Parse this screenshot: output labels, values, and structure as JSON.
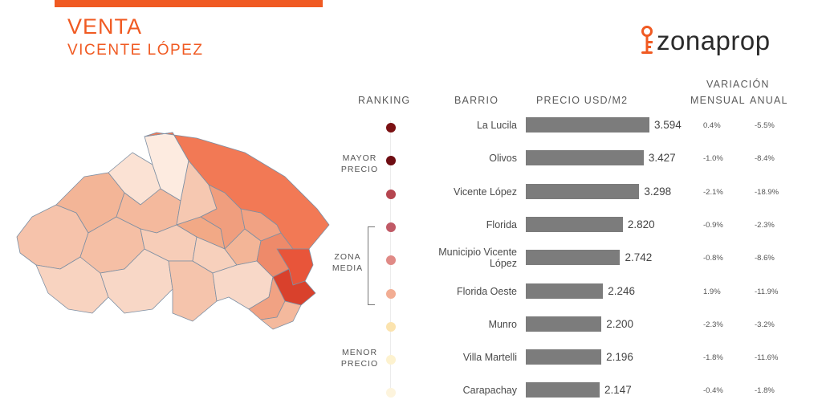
{
  "header": {
    "title": "VENTA",
    "subtitle": "VICENTE LÓPEZ",
    "logo_text": "zonaprop",
    "accent_color": "#f05a22"
  },
  "legend": {
    "mayor": [
      "MAYOR",
      "PRECIO"
    ],
    "zona": [
      "ZONA",
      "MEDIA"
    ],
    "menor": [
      "MENOR",
      "PRECIO"
    ]
  },
  "chart_data": {
    "type": "bar",
    "orientation": "horizontal",
    "column_headers": {
      "ranking": "RANKING",
      "barrio": "BARRIO",
      "precio": "PRECIO USD/M2",
      "variacion": "VARIACIÓN",
      "mensual": "MENSUAL",
      "anual": "ANUAL"
    },
    "categories": [
      "La Lucila",
      "Olivos",
      "Vicente López",
      "Florida",
      "Municipio Vicente López",
      "Florida Oeste",
      "Munro",
      "Villa Martelli",
      "Carapachay"
    ],
    "category_lines": [
      [
        "La Lucila"
      ],
      [
        "Olivos"
      ],
      [
        "Vicente López"
      ],
      [
        "Florida"
      ],
      [
        "Municipio Vicente",
        "López"
      ],
      [
        "Florida Oeste"
      ],
      [
        "Munro"
      ],
      [
        "Villa Martelli"
      ],
      [
        "Carapachay"
      ]
    ],
    "values": [
      3594,
      3427,
      3298,
      2820,
      2742,
      2246,
      2200,
      2196,
      2147
    ],
    "value_labels": [
      "3.594",
      "3.427",
      "3.298",
      "2.820",
      "2.742",
      "2.246",
      "2.200",
      "2.196",
      "2.147"
    ],
    "mensual": [
      "0.4%",
      "-1.0%",
      "-2.1%",
      "-0.9%",
      "-0.8%",
      "1.9%",
      "-2.3%",
      "-1.8%",
      "-0.4%"
    ],
    "anual": [
      "-5.5%",
      "-8.4%",
      "-18.9%",
      "-2.3%",
      "-8.6%",
      "-11.9%",
      "-3.2%",
      "-11.6%",
      "-1.8%"
    ],
    "rank_colors": [
      "#7b1113",
      "#6e0d12",
      "#b5454f",
      "#c05a66",
      "#e08a86",
      "#f2ad93",
      "#fbe3ae",
      "#fdf2cf",
      "#fdf4dd"
    ],
    "bar_color": "#7c7c7c",
    "xlim": [
      0,
      3800
    ]
  }
}
